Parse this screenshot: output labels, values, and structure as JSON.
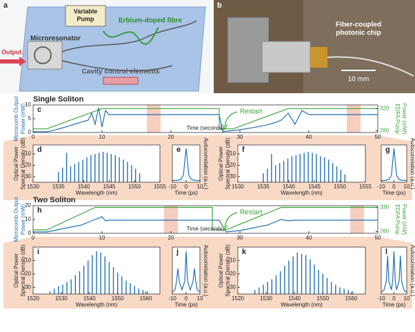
{
  "figure": {
    "a": {
      "label": "a",
      "pump": [
        "Variable",
        "Pump"
      ],
      "fibre": "Erbium-doped fibre",
      "resonator": "Microresonator",
      "output": "Output",
      "control": "Cavity control elements"
    },
    "b": {
      "label": "b",
      "caption": [
        "Fiber-coupled",
        "photonic chip"
      ],
      "scale": "10 mm"
    }
  },
  "chart_data": [
    {
      "type": "line",
      "label": "c",
      "title": "Single Soliton",
      "xlabel": "Time (seconds)",
      "ylabel": [
        "Microcomb Output",
        "Power (mW)"
      ],
      "y2label": [
        "EDFA Pump",
        "Power (mW)"
      ],
      "annotation": "Restart",
      "xlim": [
        0,
        50
      ],
      "xticks": [
        0,
        10,
        20,
        30,
        40,
        50
      ],
      "ylim": [
        0,
        10
      ],
      "yticks": [
        0,
        5,
        10
      ],
      "y2lim": [
        255,
        330
      ],
      "y2ticks": [
        260,
        320
      ],
      "highlights": [
        [
          16.5,
          18.5
        ],
        [
          45.5,
          47.5
        ]
      ],
      "series": [
        {
          "color": "#1f6fb5",
          "x": [
            0,
            2,
            3,
            4,
            5,
            6,
            7,
            8,
            8.5,
            9,
            9.5,
            10,
            10.5,
            11,
            12,
            15,
            20,
            25,
            27,
            27.5,
            30,
            32,
            34,
            35,
            36,
            37,
            38,
            39,
            40,
            42,
            45,
            50
          ],
          "values": [
            0.3,
            0.3,
            0.8,
            1.5,
            2.2,
            3,
            3.8,
            4.5,
            7,
            3,
            9,
            2,
            8,
            6.5,
            6.5,
            6.5,
            6.5,
            6.5,
            6.5,
            0.3,
            1,
            1.8,
            2.8,
            3.5,
            4.5,
            7,
            3,
            8,
            6.5,
            6.5,
            6.5,
            6.5
          ]
        },
        {
          "color": "#3aa53a",
          "axis": "y2",
          "x": [
            0,
            2,
            10,
            27,
            27,
            29,
            37,
            50
          ],
          "values": [
            265,
            265,
            320,
            320,
            265,
            265,
            320,
            320
          ]
        }
      ]
    },
    {
      "type": "comb",
      "label": "d",
      "xlabel": "Wavelength (nm)",
      "ylabel": [
        "Optical Power",
        "Spectral Density (dB)"
      ],
      "color": "#1f6fb5",
      "xlim": [
        1530,
        1555
      ],
      "xticks": [
        1530,
        1535,
        1540,
        1545,
        1550,
        1555
      ],
      "ylim": [
        -35,
        -2
      ],
      "yticks": [
        -10,
        -20,
        -30
      ],
      "x": [
        1535,
        1535.8,
        1536.6,
        1537.4,
        1538.2,
        1539,
        1539.8,
        1540.6,
        1541.4,
        1542.2,
        1543,
        1543.8,
        1544.6,
        1545.4,
        1546.2,
        1547,
        1547.8,
        1548.6,
        1549.4,
        1550.2,
        1551
      ],
      "values": [
        -26,
        -22,
        -9,
        -21,
        -19,
        -17,
        -15,
        -13,
        -11,
        -10,
        -9,
        -8,
        -9,
        -10,
        -11,
        -13,
        -15,
        -17,
        -20,
        -23,
        -27
      ]
    },
    {
      "type": "line",
      "label": "e",
      "xlabel": "Time (ps)",
      "ylabel": "Autocorrelation (a.u.)",
      "ylabel_side": "right",
      "color": "#1f6fb5",
      "xlim": [
        -10,
        10
      ],
      "xticks": [
        -10,
        0,
        10
      ],
      "ylim": [
        0,
        1.1
      ],
      "x": [
        -10,
        -8,
        -6,
        -4,
        -2,
        -1,
        0,
        1,
        2,
        4,
        6,
        8,
        10
      ],
      "values": [
        0.05,
        0.05,
        0.06,
        0.08,
        0.2,
        0.6,
        1,
        0.6,
        0.2,
        0.08,
        0.06,
        0.05,
        0.05
      ]
    },
    {
      "type": "comb",
      "label": "f",
      "xlabel": "Wavelength (nm)",
      "ylabel": [
        "Optical Power",
        "Spectral Density (dB)"
      ],
      "color": "#1f6fb5",
      "xlim": [
        1530,
        1555
      ],
      "xticks": [
        1530,
        1535,
        1540,
        1545,
        1550,
        1555
      ],
      "ylim": [
        -35,
        -2
      ],
      "yticks": [
        -10,
        -20,
        -30
      ],
      "x": [
        1535,
        1535.8,
        1536.6,
        1537.4,
        1538.2,
        1539,
        1539.8,
        1540.6,
        1541.4,
        1542.2,
        1543,
        1543.8,
        1544.6,
        1545.4,
        1546.2,
        1547,
        1547.8,
        1548.6,
        1549.4,
        1550.2,
        1551
      ],
      "values": [
        -27,
        -23,
        -10,
        -20,
        -18,
        -16,
        -14,
        -12,
        -11,
        -10,
        -9,
        -8,
        -9,
        -10,
        -12,
        -13,
        -15,
        -18,
        -21,
        -24,
        -28
      ]
    },
    {
      "type": "line",
      "label": "g",
      "xlabel": "Time (ps)",
      "ylabel": "Autocorrelation (a.u.)",
      "ylabel_side": "right",
      "color": "#1f6fb5",
      "xlim": [
        -10,
        10
      ],
      "xticks": [
        -10,
        0,
        10
      ],
      "ylim": [
        0,
        1.1
      ],
      "x": [
        -10,
        -8,
        -6,
        -4,
        -2,
        -1,
        0,
        1,
        2,
        4,
        6,
        8,
        10
      ],
      "values": [
        0.05,
        0.05,
        0.06,
        0.08,
        0.2,
        0.6,
        1,
        0.6,
        0.2,
        0.08,
        0.06,
        0.05,
        0.05
      ]
    },
    {
      "type": "line",
      "label": "h",
      "title": "Two Soliton",
      "xlabel": "Time (seconds)",
      "ylabel": [
        "Microcomb Output",
        "Power (mW)"
      ],
      "y2label": [
        "EDFA Pump",
        "Power (mW)"
      ],
      "annotation": "Restart",
      "xlim": [
        0,
        50
      ],
      "xticks": [
        0,
        10,
        20,
        30,
        40,
        50
      ],
      "ylim": [
        0,
        20
      ],
      "yticks": [
        0,
        10,
        20
      ],
      "y2lim": [
        255,
        335
      ],
      "y2ticks": [
        260,
        330
      ],
      "highlights": [
        [
          19,
          21
        ],
        [
          46,
          48
        ]
      ],
      "series": [
        {
          "color": "#1f6fb5",
          "x": [
            0,
            2,
            3,
            5,
            7,
            8,
            9,
            10,
            10.5,
            11,
            12,
            15,
            20,
            25,
            26,
            27,
            28,
            30,
            32,
            34,
            35,
            36,
            37,
            38,
            39,
            40,
            42,
            44,
            45,
            50
          ],
          "values": [
            1,
            1,
            2,
            4,
            6,
            8,
            10,
            12,
            9,
            9.5,
            9.5,
            9.5,
            9.5,
            9.5,
            9.5,
            9.5,
            1,
            2,
            4,
            6,
            8,
            10,
            9,
            9.5,
            9.5,
            9.5,
            9.5,
            9.5,
            9.5,
            9.5
          ]
        },
        {
          "color": "#3aa53a",
          "axis": "y2",
          "x": [
            0,
            2,
            9,
            26,
            26,
            28,
            36,
            50
          ],
          "values": [
            265,
            265,
            330,
            330,
            265,
            265,
            330,
            330
          ]
        }
      ]
    },
    {
      "type": "comb",
      "label": "i",
      "xlabel": "Wavelength (nm)",
      "ylabel": [
        "Optical Power",
        "Spectral Density (dB)"
      ],
      "color": "#1f6fb5",
      "xlim": [
        1520,
        1565
      ],
      "xticks": [
        1520,
        1530,
        1540,
        1550,
        1560
      ],
      "ylim": [
        -35,
        0
      ],
      "yticks": [
        -10,
        -20,
        -30
      ],
      "x": [
        1526,
        1527.5,
        1529,
        1530.5,
        1532,
        1533.5,
        1535,
        1536.5,
        1538,
        1539.5,
        1541,
        1542.5,
        1544,
        1545.5,
        1547,
        1548.5,
        1550,
        1551.5,
        1553,
        1554.5,
        1556,
        1557.5,
        1559,
        1560.5
      ],
      "values": [
        -33,
        -31,
        -29,
        -28,
        -26,
        -24,
        -21,
        -18,
        -14,
        -10,
        -6,
        -3,
        -4,
        -7,
        -11,
        -15,
        -19,
        -22,
        -25,
        -27,
        -29,
        -31,
        -32,
        -33
      ]
    },
    {
      "type": "line",
      "label": "j",
      "xlabel": "Time (ps)",
      "ylabel": "Autocorrelation (a.u.)",
      "ylabel_side": "right",
      "color": "#1f6fb5",
      "xlim": [
        -10,
        10
      ],
      "xticks": [
        -10,
        0,
        10
      ],
      "ylim": [
        0,
        1.1
      ],
      "x": [
        -10,
        -8,
        -7,
        -6,
        -5,
        -3,
        -1,
        0,
        1,
        3,
        5,
        6,
        7,
        8,
        10
      ],
      "values": [
        0.05,
        0.1,
        0.3,
        0.6,
        0.3,
        0.1,
        0.3,
        1,
        0.3,
        0.1,
        0.3,
        0.6,
        0.3,
        0.1,
        0.05
      ]
    },
    {
      "type": "comb",
      "label": "k",
      "xlabel": "Wavelength (nm)",
      "ylabel": [
        "Optical Power",
        "Spectral Density (dB)"
      ],
      "color": "#1f6fb5",
      "xlim": [
        1520,
        1565
      ],
      "xticks": [
        1520,
        1530,
        1540,
        1550,
        1560
      ],
      "ylim": [
        -35,
        0
      ],
      "yticks": [
        -10,
        -20,
        -30
      ],
      "x": [
        1526,
        1527.5,
        1529,
        1530.5,
        1532,
        1533.5,
        1535,
        1536.5,
        1538,
        1539.5,
        1541,
        1542.5,
        1544,
        1545.5,
        1547,
        1548.5,
        1550,
        1551.5,
        1553,
        1554.5,
        1556,
        1557.5,
        1559,
        1560.5
      ],
      "values": [
        -32,
        -30,
        -28,
        -26,
        -24,
        -21,
        -18,
        -14,
        -10,
        -7,
        -4,
        -5,
        -6,
        -9,
        -13,
        -17,
        -20,
        -23,
        -26,
        -28,
        -30,
        -31,
        -32,
        -33
      ]
    },
    {
      "type": "line",
      "label": "l",
      "xlabel": "Time (ps)",
      "ylabel": "Autocorrelation (a.u.)",
      "ylabel_side": "right",
      "color": "#1f6fb5",
      "xlim": [
        -10,
        10
      ],
      "xticks": [
        -10,
        0,
        10
      ],
      "ylim": [
        0,
        1.1
      ],
      "x": [
        -10,
        -8,
        -6,
        -5,
        -4,
        -2,
        -1,
        0,
        1,
        2,
        4,
        5,
        6,
        8,
        10
      ],
      "values": [
        0.05,
        0.08,
        0.3,
        0.9,
        0.3,
        0.1,
        0.3,
        1,
        0.3,
        0.1,
        0.3,
        0.9,
        0.3,
        0.08,
        0.05
      ]
    }
  ]
}
